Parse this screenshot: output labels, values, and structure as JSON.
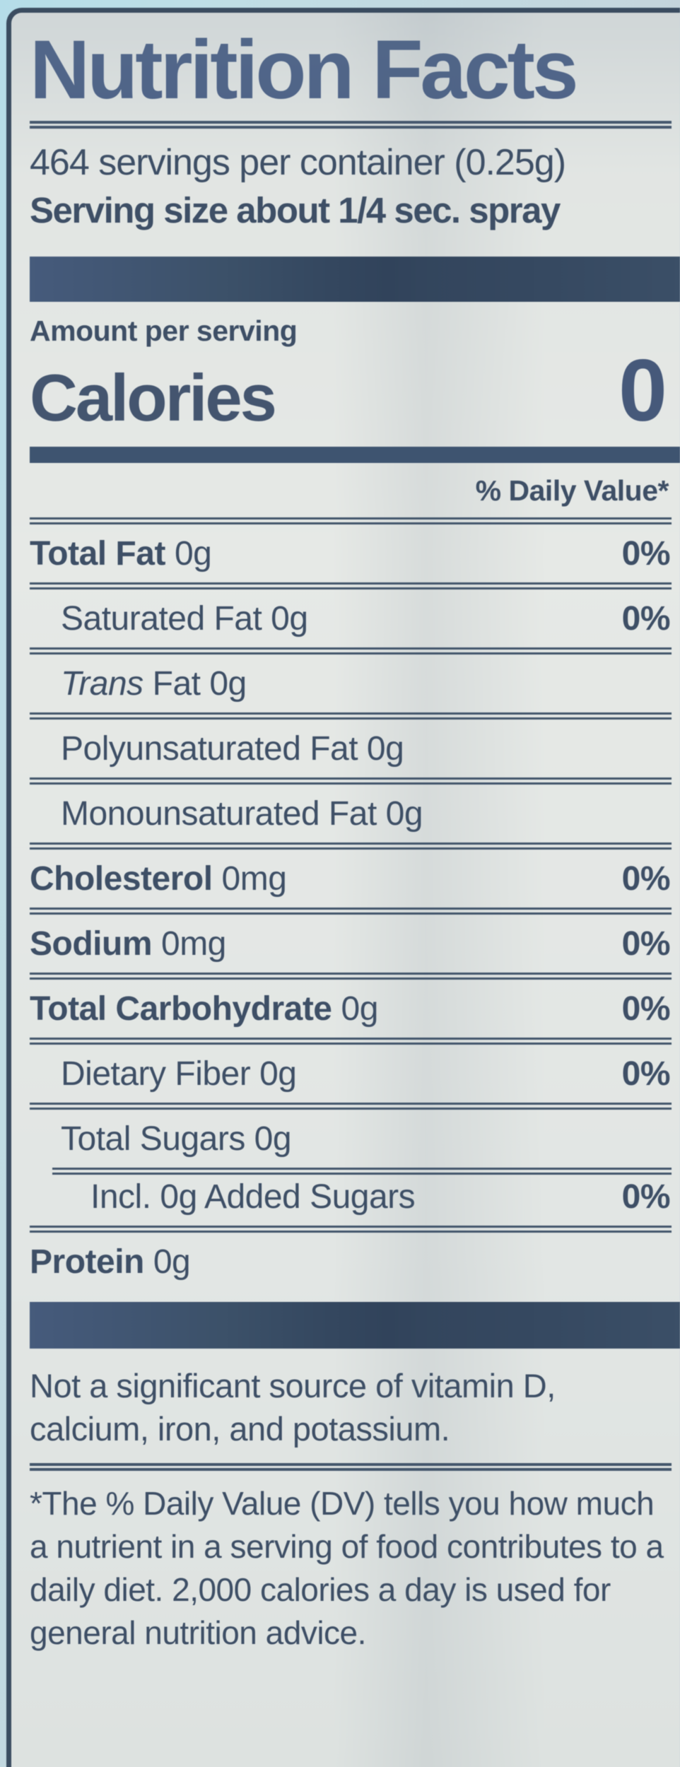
{
  "label": {
    "title": "Nutrition Facts",
    "servings_per_container": "464 servings per container (0.25g)",
    "serving_size": "Serving size about 1/4 sec. spray",
    "amount_per_serving": "Amount per serving",
    "calories": {
      "label": "Calories",
      "value": "0"
    },
    "daily_value_header": "% Daily Value*",
    "rows": [
      {
        "lead": "Total Fat",
        "rest": "0g",
        "dv": "0%"
      },
      {
        "lead": "",
        "rest": "Saturated Fat 0g",
        "dv": "0%"
      },
      {
        "lead": "Trans",
        "rest": "Fat 0g",
        "dv": ""
      },
      {
        "lead": "",
        "rest": "Polyunsaturated Fat 0g",
        "dv": ""
      },
      {
        "lead": "",
        "rest": "Monounsaturated Fat 0g",
        "dv": ""
      },
      {
        "lead": "Cholesterol",
        "rest": "0mg",
        "dv": "0%"
      },
      {
        "lead": "Sodium",
        "rest": "0mg",
        "dv": "0%"
      },
      {
        "lead": "Total Carbohydrate",
        "rest": "0g",
        "dv": "0%"
      },
      {
        "lead": "",
        "rest": "Dietary Fiber 0g",
        "dv": "0%"
      },
      {
        "lead": "",
        "rest": "Total Sugars 0g",
        "dv": ""
      },
      {
        "lead": "",
        "rest": "Incl. 0g Added Sugars",
        "dv": "0%"
      },
      {
        "lead": "Protein",
        "rest": "0g",
        "dv": ""
      }
    ],
    "not_significant_note": "Not a significant source of vitamin D, calcium, iron, and potassium.",
    "daily_value_footnote": "*The % Daily Value (DV) tells you how much a nutrient in a serving of food contributes to a daily diet. 2,000 calories a day is used for general nutrition advice."
  },
  "colors": {
    "ink": "#3e4f66",
    "title_ink": "#4d6287",
    "bar": "#3d5269",
    "label_background": "#e3e7e5",
    "photo_background": "#b9dce6"
  }
}
